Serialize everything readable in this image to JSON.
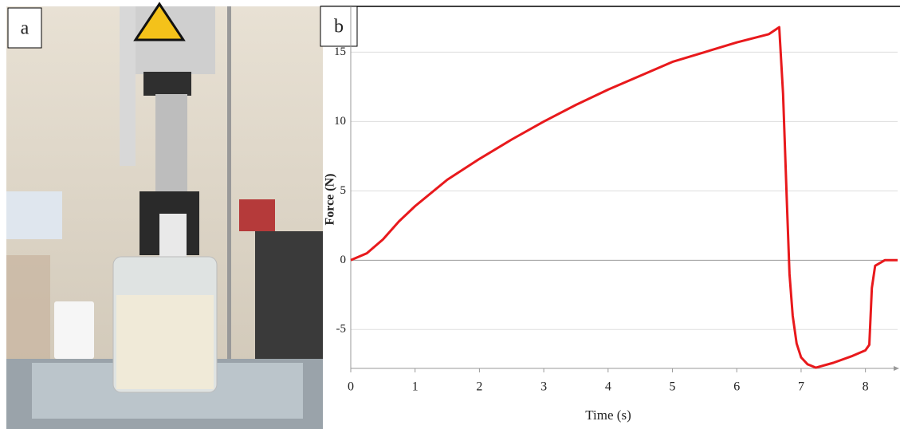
{
  "photo": {
    "label": "a"
  },
  "chart_data": {
    "type": "line",
    "panel_label": "b",
    "x_label": "Time (s)",
    "y_label": "Force (N)",
    "x": [
      0,
      0.25,
      0.5,
      0.75,
      1,
      1.5,
      2,
      2.5,
      3,
      3.5,
      4,
      4.5,
      5,
      5.5,
      6,
      6.5,
      6.66,
      6.72,
      6.78,
      6.82,
      6.87,
      6.93,
      7.0,
      7.1,
      7.23,
      7.5,
      7.8,
      8.0,
      8.06,
      8.1,
      8.15,
      8.3,
      8.5
    ],
    "values": [
      0,
      0.5,
      1.5,
      2.8,
      3.9,
      5.8,
      7.3,
      8.7,
      10.0,
      11.2,
      12.3,
      13.3,
      14.3,
      15.0,
      15.7,
      16.3,
      16.8,
      12.0,
      4.0,
      -1.0,
      -4.0,
      -6.0,
      -7.0,
      -7.5,
      -7.75,
      -7.4,
      -6.9,
      -6.5,
      -6.1,
      -2.0,
      -0.4,
      0,
      0
    ],
    "color": "#e8191c",
    "xlim": [
      0,
      8.5
    ],
    "ylim": [
      -7.8,
      18.3
    ],
    "xticks": [
      0,
      1,
      2,
      3,
      4,
      5,
      6,
      7,
      8
    ],
    "yticks": [
      -5,
      0,
      5,
      10,
      15
    ],
    "grid": true
  }
}
